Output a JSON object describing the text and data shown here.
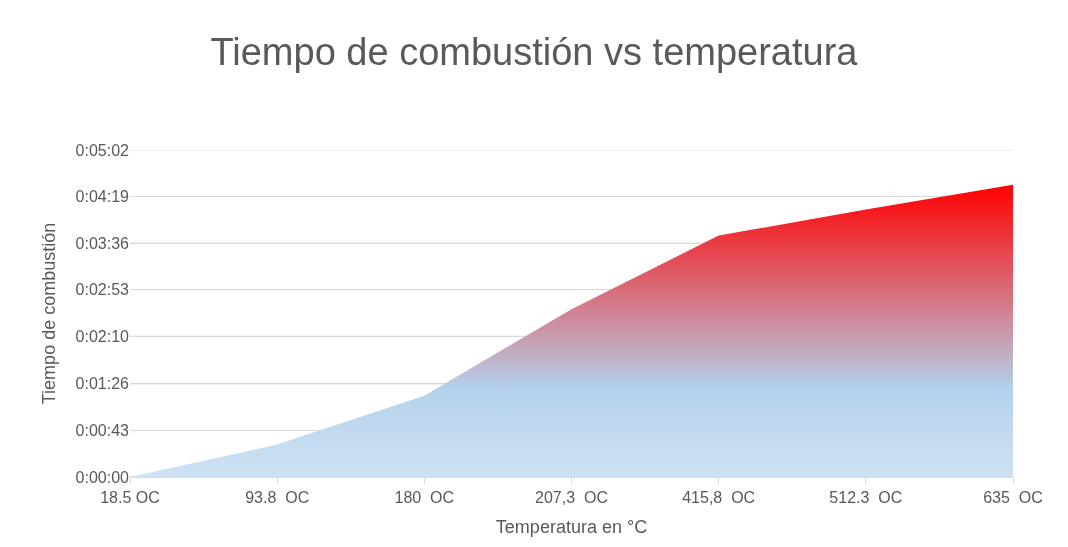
{
  "chart_data": {
    "type": "area",
    "title": "Tiempo de combustión vs temperatura",
    "xlabel": "Temperatura en °C",
    "ylabel": "Tiempo de combustión",
    "categories": [
      "18.5 OC",
      "93.8  OC",
      "180  OC",
      "207,3  OC",
      "415,8  OC",
      "512.3  OC",
      "635  OC"
    ],
    "series": [
      {
        "color": "#ff0000",
        "values": [
          0,
          30,
          75,
          155,
          223,
          247,
          270
        ]
      }
    ],
    "ylim": [
      0,
      302
    ],
    "yticks": [
      {
        "value": 0,
        "label": "0:00:00"
      },
      {
        "value": 43,
        "label": "0:00:43"
      },
      {
        "value": 86,
        "label": "0:01:26"
      },
      {
        "value": 130,
        "label": "0:02:10"
      },
      {
        "value": 173,
        "label": "0:02:53"
      },
      {
        "value": 216,
        "label": "0:03:36"
      },
      {
        "value": 259,
        "label": "0:04:19"
      },
      {
        "value": 302,
        "label": "0:05:02"
      }
    ],
    "grid": "y"
  }
}
